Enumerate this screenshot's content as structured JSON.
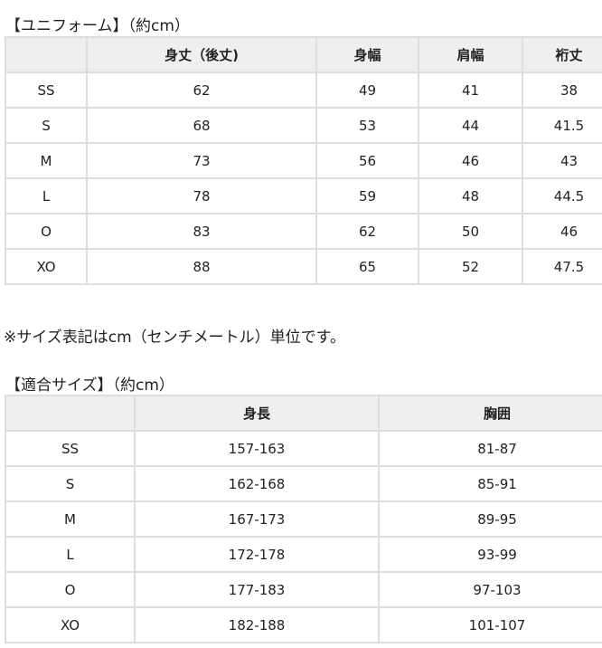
{
  "uniform": {
    "title": "【ユニフォーム】（約cm）",
    "headers": [
      "",
      "身丈（後丈)",
      "身幅",
      "肩幅",
      "裄丈"
    ],
    "rows": [
      [
        "SS",
        "62",
        "49",
        "41",
        "38"
      ],
      [
        "S",
        "68",
        "53",
        "44",
        "41.5"
      ],
      [
        "M",
        "73",
        "56",
        "46",
        "43"
      ],
      [
        "L",
        "78",
        "59",
        "48",
        "44.5"
      ],
      [
        "O",
        "83",
        "62",
        "50",
        "46"
      ],
      [
        "XO",
        "88",
        "65",
        "52",
        "47.5"
      ]
    ]
  },
  "note": "※サイズ表記はcm（センチメートル）単位です。",
  "fit": {
    "title": "【適合サイズ】（約cm）",
    "headers": [
      "",
      "身長",
      "胸囲"
    ],
    "rows": [
      [
        "SS",
        "157-163",
        "81-87"
      ],
      [
        "S",
        "162-168",
        "85-91"
      ],
      [
        "M",
        "167-173",
        "89-95"
      ],
      [
        "L",
        "172-178",
        "93-99"
      ],
      [
        "O",
        "177-183",
        "97-103"
      ],
      [
        "XO",
        "182-188",
        "101-107"
      ]
    ]
  }
}
